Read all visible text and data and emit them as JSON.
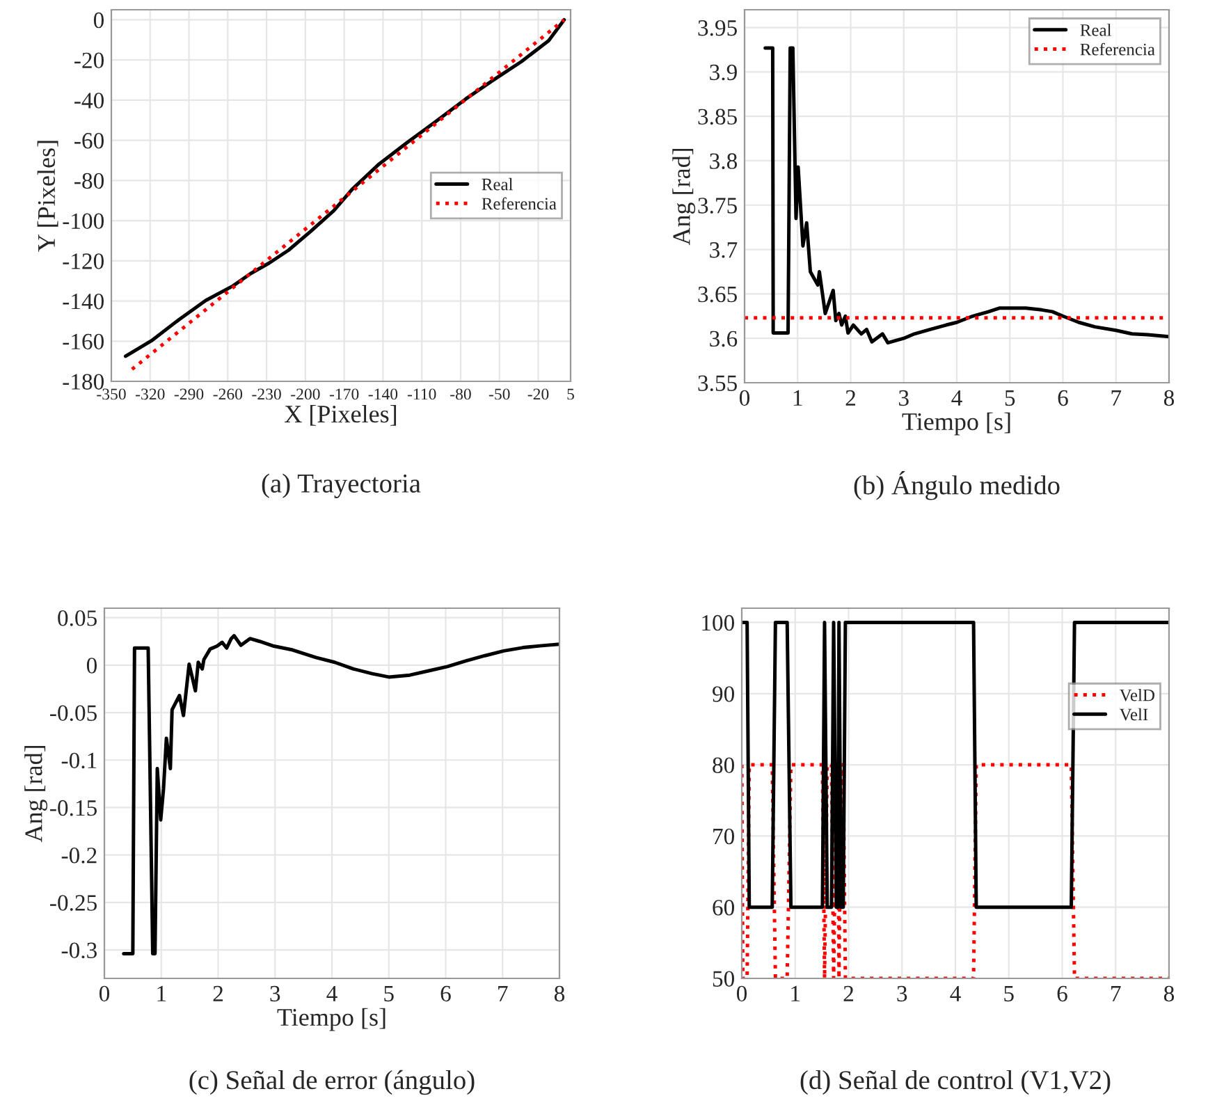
{
  "chart_data": [
    {
      "type": "line",
      "title": "(a) Trayectoria",
      "xlabel": "X [Pixeles]",
      "ylabel": "Y [Pixeles]",
      "xlim": [
        -350,
        5
      ],
      "ylim": [
        -180,
        5
      ],
      "xticks": [
        -350,
        -320,
        -290,
        -260,
        -230,
        -200,
        -170,
        -140,
        -110,
        -80,
        -50,
        -20,
        5
      ],
      "yticks": [
        -180,
        -160,
        -140,
        -120,
        -100,
        -80,
        -60,
        -40,
        -20,
        0
      ],
      "grid": true,
      "legend": "right",
      "series": [
        {
          "name": "Real",
          "color": "#000000",
          "line_style": "solid",
          "x": [
            -339,
            -319,
            -298,
            -277,
            -256,
            -242,
            -228,
            -213,
            -196,
            -178,
            -164,
            -143,
            -122,
            -100,
            -76,
            -55,
            -33,
            -12,
            0
          ],
          "values": [
            -167.5,
            -159.8,
            -149.4,
            -139.7,
            -132.5,
            -126.2,
            -121.1,
            -114.7,
            -105.4,
            -95,
            -84.5,
            -71.8,
            -61.4,
            -51,
            -39.4,
            -30.1,
            -20.8,
            -10.4,
            0
          ]
        },
        {
          "name": "Referencia",
          "color": "#ff0000",
          "line_style": "dotted",
          "x": [
            -334,
            0
          ],
          "values": [
            -174,
            0
          ]
        }
      ]
    },
    {
      "type": "line",
      "title": "(b) Ángulo medido",
      "xlabel": "Tiempo [s]",
      "ylabel": "Ang [rad]",
      "xlim": [
        0,
        8
      ],
      "ylim": [
        3.55,
        3.97
      ],
      "xticks": [
        0,
        1,
        2,
        3,
        4,
        5,
        6,
        7,
        8
      ],
      "yticks": [
        3.55,
        3.6,
        3.65,
        3.7,
        3.75,
        3.8,
        3.85,
        3.9,
        3.95
      ],
      "grid": true,
      "legend": "top right",
      "series": [
        {
          "name": "Real",
          "color": "#000000",
          "line_style": "solid",
          "x": [
            0.39,
            0.53,
            0.54,
            0.82,
            0.86,
            0.91,
            0.97,
            1.01,
            1.1,
            1.17,
            1.24,
            1.38,
            1.41,
            1.52,
            1.67,
            1.72,
            1.78,
            1.83,
            1.9,
            1.95,
            2.05,
            2.2,
            2.3,
            2.4,
            2.6,
            2.7,
            3.0,
            3.2,
            3.5,
            3.8,
            4.0,
            4.3,
            4.6,
            4.8,
            5.0,
            5.3,
            5.6,
            5.8,
            6.0,
            6.3,
            6.6,
            7.0,
            7.3,
            7.6,
            8.0
          ],
          "values": [
            3.927,
            3.927,
            3.606,
            3.606,
            3.927,
            3.927,
            3.735,
            3.793,
            3.704,
            3.73,
            3.675,
            3.66,
            3.675,
            3.628,
            3.654,
            3.62,
            3.628,
            3.615,
            3.625,
            3.606,
            3.615,
            3.605,
            3.61,
            3.596,
            3.605,
            3.595,
            3.6,
            3.605,
            3.61,
            3.615,
            3.618,
            3.625,
            3.63,
            3.634,
            3.634,
            3.634,
            3.632,
            3.63,
            3.625,
            3.618,
            3.613,
            3.609,
            3.605,
            3.604,
            3.602
          ]
        },
        {
          "name": "Referencia",
          "color": "#ff0000",
          "line_style": "dotted",
          "x": [
            0,
            8
          ],
          "values": [
            3.623,
            3.623
          ]
        }
      ]
    },
    {
      "type": "line",
      "title": "(c) Señal de error (ángulo)",
      "xlabel": "Tiempo [s]",
      "ylabel": "Ang [rad]",
      "xlim": [
        0,
        8
      ],
      "ylim": [
        -0.33,
        0.06
      ],
      "xticks": [
        0,
        1,
        2,
        3,
        4,
        5,
        6,
        7,
        8
      ],
      "yticks": [
        -0.3,
        -0.25,
        -0.2,
        -0.15,
        -0.1,
        -0.05,
        0,
        0.05
      ],
      "grid": true,
      "series": [
        {
          "color": "#000000",
          "line_style": "solid",
          "x": [
            0.34,
            0.5,
            0.53,
            0.77,
            0.85,
            0.89,
            0.93,
            0.99,
            1.04,
            1.09,
            1.16,
            1.19,
            1.32,
            1.39,
            1.49,
            1.6,
            1.65,
            1.72,
            1.75,
            1.86,
            1.98,
            2.07,
            2.15,
            2.23,
            2.28,
            2.4,
            2.56,
            2.73,
            2.98,
            3.31,
            3.72,
            4.05,
            4.38,
            4.71,
            5.0,
            5.37,
            5.7,
            6.03,
            6.36,
            6.69,
            7.02,
            7.36,
            7.69,
            8.0
          ],
          "values": [
            -0.304,
            -0.304,
            0.018,
            0.018,
            -0.304,
            -0.304,
            -0.109,
            -0.163,
            -0.13,
            -0.077,
            -0.109,
            -0.047,
            -0.032,
            -0.053,
            0.001,
            -0.027,
            0.003,
            -0.004,
            0.006,
            0.017,
            0.02,
            0.024,
            0.018,
            0.028,
            0.031,
            0.021,
            0.028,
            0.025,
            0.02,
            0.016,
            0.008,
            0.003,
            -0.004,
            -0.009,
            -0.0125,
            -0.0105,
            -0.006,
            -0.0015,
            0.0045,
            0.01,
            0.015,
            0.0185,
            0.0205,
            0.022
          ]
        }
      ]
    },
    {
      "type": "line",
      "title": "(d) Señal de control (V1,V2)",
      "xlim": [
        0,
        8
      ],
      "ylim": [
        50,
        102
      ],
      "xticks": [
        0,
        1,
        2,
        3,
        4,
        5,
        6,
        7,
        8
      ],
      "yticks": [
        50,
        60,
        70,
        80,
        90,
        100
      ],
      "grid": true,
      "legend": "top right",
      "series": [
        {
          "name": "VelD",
          "color": "#ff0000",
          "line_style": "dotted",
          "x": [
            0,
            0.02,
            0.1,
            0.14,
            0.57,
            0.63,
            0.85,
            0.92,
            1.51,
            1.55,
            1.6,
            1.68,
            1.72,
            1.77,
            1.8,
            1.82,
            1.86,
            1.9,
            1.94,
            4.34,
            4.39,
            6.17,
            6.23,
            8
          ],
          "values": [
            80,
            50,
            50,
            80,
            80,
            50,
            50,
            80,
            80,
            50,
            80,
            80,
            50,
            80,
            80,
            50,
            80,
            80,
            50,
            50,
            80,
            80,
            50,
            50
          ]
        },
        {
          "name": "VelI",
          "color": "#000000",
          "line_style": "solid",
          "x": [
            0,
            0.1,
            0.14,
            0.57,
            0.63,
            0.85,
            0.92,
            1.51,
            1.55,
            1.6,
            1.68,
            1.72,
            1.77,
            1.8,
            1.82,
            1.86,
            1.9,
            1.94,
            4.34,
            4.39,
            6.17,
            6.23,
            8
          ],
          "values": [
            100,
            100,
            60,
            60,
            100,
            100,
            60,
            60,
            100,
            60,
            60,
            100,
            60,
            60,
            100,
            60,
            60,
            100,
            100,
            60,
            60,
            100,
            100
          ]
        }
      ]
    }
  ]
}
